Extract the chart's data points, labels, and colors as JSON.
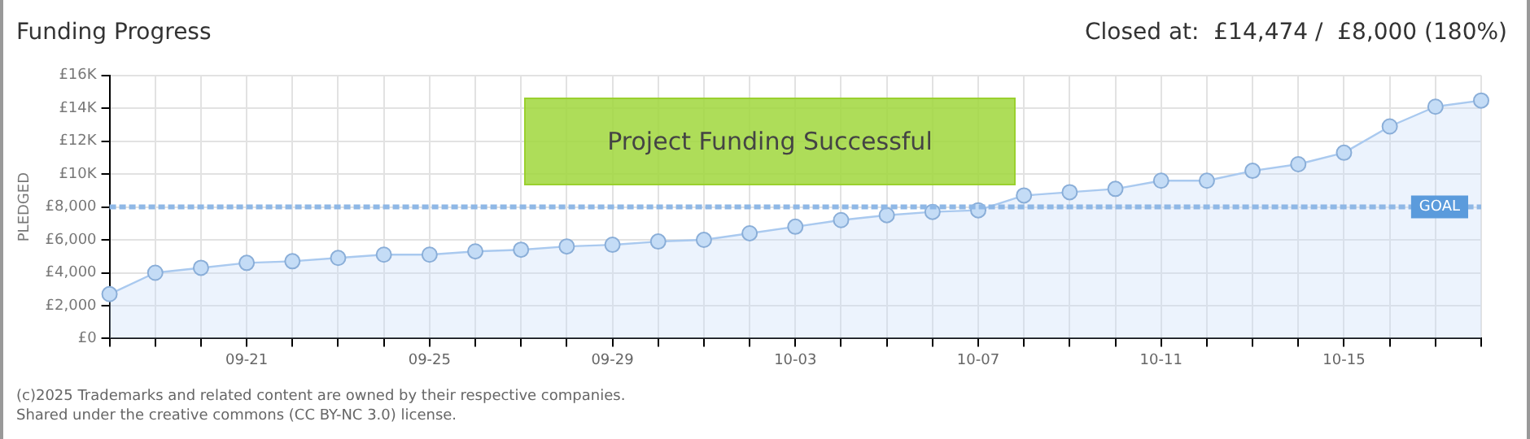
{
  "chart_data": {
    "type": "area",
    "title": "Funding Progress",
    "subtitle": "Closed at:  £14,474 /  £8,000 (180%)",
    "ylabel": "PLEDGED",
    "categories": [
      null,
      null,
      null,
      "09-21",
      null,
      null,
      null,
      "09-25",
      null,
      null,
      null,
      "09-29",
      null,
      null,
      null,
      "10-03",
      null,
      null,
      null,
      "10-07",
      null,
      null,
      null,
      "10-11",
      null,
      null,
      null,
      "10-15",
      null,
      null,
      null
    ],
    "series": [
      {
        "color": "#a9c9ef",
        "values": [
          2700,
          4000,
          4300,
          4600,
          4700,
          4900,
          5100,
          5100,
          5300,
          5400,
          5600,
          5700,
          5900,
          6000,
          6400,
          6800,
          7200,
          7500,
          7700,
          7800,
          8700,
          8900,
          9100,
          9600,
          9600,
          10200,
          10600,
          11300,
          12900,
          14100,
          14474
        ]
      }
    ],
    "ylim": [
      0,
      16000
    ],
    "yticks": [
      {
        "value": 0,
        "label": "£0"
      },
      {
        "value": 2000,
        "label": "£2,000"
      },
      {
        "value": 4000,
        "label": "£4,000"
      },
      {
        "value": 6000,
        "label": "£6,000"
      },
      {
        "value": 8000,
        "label": "£8,000"
      },
      {
        "value": 10000,
        "label": "£10K"
      },
      {
        "value": 12000,
        "label": "£12K"
      },
      {
        "value": 14000,
        "label": "£14K"
      },
      {
        "value": 16000,
        "label": "£16K"
      }
    ],
    "ref_lines": [
      {
        "axis": "y",
        "value": 8000,
        "label": "GOAL",
        "color": "#8fb8e6",
        "line_style": "dashed"
      }
    ],
    "grid": true,
    "marker": "circle",
    "legend": false,
    "annotations": [
      "Project Funding Successful",
      "(c)2025",
      "Trademarks and related content are owned by their respective companies.",
      "Shared under the creative commons (CC BY-NC 3.0) license."
    ]
  }
}
